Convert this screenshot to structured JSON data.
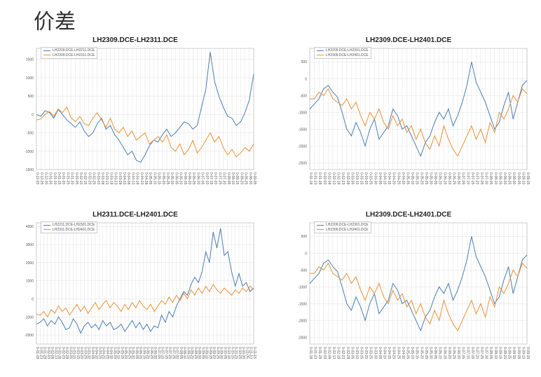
{
  "title": "价差",
  "palette": {
    "blue": "#4b7fb3",
    "orange": "#e8923a"
  },
  "style": {
    "background_color": "#ffffff",
    "grid_color": "#e0e0e0",
    "axis_color": "#bbbbbb",
    "tick_font_size": 5,
    "title_font_size": 10,
    "line_width": 1,
    "legend_font_size": 5,
    "legend_border": "#cccccc"
  },
  "charts": [
    {
      "type": "line",
      "title": "LH2309.DCE-LH2311.DCE",
      "ylim": [
        -1500,
        1800
      ],
      "ytick_step": 500,
      "yticks": [
        -1500,
        -1000,
        -500,
        0,
        500,
        1000,
        1500
      ],
      "x_labels": [
        "0-12-20",
        "0-12-25",
        "0-12-30",
        "0-01-05",
        "0-01-10",
        "0-01-15",
        "0-01-20",
        "0-01-25",
        "0-01-30",
        "0-02-05",
        "0-02-10",
        "0-02-15",
        "0-02-20",
        "0-02-25",
        "0-03-03",
        "0-03-08",
        "0-03-13",
        "0-03-18",
        "0-03-23",
        "0-03-28",
        "0-04-03",
        "0-04-08",
        "0-04-13",
        "0-04-18",
        "0-04-23",
        "0-04-28",
        "0-05-05",
        "0-05-10",
        "0-05-15",
        "0-05-20",
        "0-05-25",
        "0-05-30",
        "0-06-05",
        "0-06-10",
        "0-06-15",
        "0-06-20",
        "0-06-25",
        "0-06-30",
        "0-07-05",
        "0-07-10",
        "0-07-15",
        "0-07-20",
        "0-07-25",
        "0-07-30",
        "0-08-05",
        "0-08-10",
        "0-08-15",
        "0-08-20",
        "0-08-25",
        "0-08-30",
        "0-09-05"
      ],
      "series": [
        {
          "label": "LH2209.DCE-LH2211.DCE",
          "color": "#4b7fb3",
          "data": [
            0,
            -50,
            100,
            50,
            -100,
            140,
            0,
            -150,
            -250,
            -350,
            -200,
            -450,
            -600,
            -500,
            -250,
            -100,
            -400,
            -300,
            -550,
            -700,
            -900,
            -1100,
            -1000,
            -1250,
            -1300,
            -1100,
            -850,
            -700,
            -750,
            -550,
            -400,
            -600,
            -500,
            -350,
            -200,
            -250,
            -400,
            -300,
            200,
            700,
            1700,
            900,
            500,
            200,
            -50,
            -100,
            -300,
            -200,
            50,
            400,
            1100
          ]
        },
        {
          "label": "LH2309.DCE-LH2311.DCE",
          "color": "#e8923a",
          "data": [
            -150,
            -120,
            0,
            80,
            -50,
            150,
            50,
            200,
            -100,
            -200,
            -50,
            -250,
            -300,
            -100,
            50,
            -150,
            -350,
            -100,
            -400,
            -500,
            -350,
            -600,
            -450,
            -700,
            -600,
            -500,
            -800,
            -700,
            -600,
            -750,
            -550,
            -900,
            -1000,
            -800,
            -1100,
            -950,
            -700,
            -1050,
            -900,
            -700,
            -500,
            -750,
            -600,
            -900,
            -1100,
            -950,
            -1150,
            -1050,
            -900,
            -1000,
            -800
          ]
        }
      ]
    },
    {
      "type": "line",
      "title": "LH2309.DCE-LH2401.DCE",
      "ylim": [
        -2700,
        900
      ],
      "ytick_step": 500,
      "yticks": [
        -2500,
        -2000,
        -1500,
        -1000,
        -500,
        0,
        500
      ],
      "x_labels": [
        "0-01-18",
        "0-01-23",
        "0-01-28",
        "0-02-03",
        "0-02-08",
        "0-02-13",
        "0-02-18",
        "0-02-23",
        "0-02-28",
        "0-03-05",
        "0-03-10",
        "0-03-15",
        "0-03-20",
        "0-03-25",
        "0-03-30",
        "0-04-05",
        "0-04-10",
        "0-04-15",
        "0-04-20",
        "0-04-25",
        "0-04-30",
        "0-05-05",
        "0-05-10",
        "0-05-15",
        "0-05-20",
        "0-05-25",
        "0-05-30",
        "0-06-05",
        "0-06-10",
        "0-06-15",
        "0-06-20",
        "0-06-25",
        "0-06-30",
        "0-07-05",
        "0-07-10",
        "0-07-15",
        "0-07-20",
        "0-07-25",
        "0-07-30",
        "0-08-05",
        "0-08-10",
        "0-08-15",
        "0-08-20",
        "0-08-25",
        "0-08-30",
        "0-09-05",
        "0-09-10",
        "0-09-15"
      ],
      "series": [
        {
          "label": "LH2209.DCE-LH2301.DCE",
          "color": "#4b7fb3",
          "data": [
            -900,
            -750,
            -600,
            -300,
            -200,
            -400,
            -550,
            -1000,
            -1500,
            -1700,
            -1300,
            -1600,
            -2000,
            -1500,
            -1200,
            -1800,
            -1600,
            -1400,
            -900,
            -1100,
            -1500,
            -1400,
            -1700,
            -2000,
            -2300,
            -1900,
            -1700,
            -1300,
            -1000,
            -1200,
            -900,
            -1400,
            -1100,
            -700,
            -200,
            500,
            -100,
            -400,
            -700,
            -1100,
            -1500,
            -1300,
            -800,
            -400,
            -1200,
            -700,
            -200,
            -50
          ]
        },
        {
          "label": "LH2309.DCE-LH2401.DCE",
          "color": "#e8923a",
          "data": [
            -600,
            -600,
            -400,
            -500,
            -300,
            -600,
            -700,
            -800,
            -600,
            -900,
            -700,
            -1100,
            -1400,
            -1000,
            -1200,
            -900,
            -1300,
            -1500,
            -1100,
            -1400,
            -1200,
            -1600,
            -1400,
            -1800,
            -1500,
            -1900,
            -2100,
            -1700,
            -2000,
            -1400,
            -1800,
            -2100,
            -2300,
            -2000,
            -1700,
            -1400,
            -1800,
            -1500,
            -1900,
            -1300,
            -1600,
            -1000,
            -1200,
            -900,
            -500,
            -700,
            -300,
            -450
          ]
        }
      ]
    },
    {
      "type": "line",
      "title": "LH2311.DCE-LH2401.DCE",
      "ylim": [
        -2500,
        4200
      ],
      "ytick_step": 1000,
      "yticks": [
        -2000,
        -1000,
        0,
        1000,
        2000,
        3000,
        4000
      ],
      "x_labels": [
        "0-01-18",
        "0-01-23",
        "0-01-28",
        "0-02-03",
        "0-02-08",
        "0-02-13",
        "0-02-18",
        "0-02-23",
        "0-02-28",
        "0-03-05",
        "0-03-10",
        "0-03-15",
        "0-03-20",
        "0-03-25",
        "0-03-30",
        "0-04-05",
        "0-04-10",
        "0-04-15",
        "0-04-20",
        "0-04-25",
        "0-04-30",
        "0-05-05",
        "0-05-10",
        "0-05-15",
        "0-05-20",
        "0-05-25",
        "0-05-30",
        "0-06-05",
        "0-06-10",
        "0-06-15",
        "0-06-20",
        "0-06-25",
        "0-06-30",
        "0-07-05",
        "0-07-10",
        "0-07-15",
        "0-07-20",
        "0-07-25",
        "0-07-30",
        "0-08-05",
        "0-08-10",
        "0-08-15",
        "0-08-20",
        "0-08-25",
        "0-08-30",
        "0-09-05",
        "0-09-10",
        "0-09-15",
        "0-09-20",
        "0-09-25",
        "0-09-30",
        "0-10-05",
        "0-10-10",
        "0-10-15",
        "0-10-20",
        "0-10-25",
        "0-10-30",
        "0-11-05",
        "0-11-10",
        "0-11-15"
      ],
      "series": [
        {
          "label": "LH2211.DCE-LH2301.DCE",
          "color": "#4b7fb3",
          "data": [
            -1400,
            -1300,
            -1100,
            -1500,
            -1200,
            -1400,
            -1000,
            -1300,
            -1700,
            -1600,
            -1100,
            -1400,
            -1900,
            -1500,
            -1300,
            -1600,
            -1400,
            -1700,
            -1200,
            -1500,
            -1300,
            -1700,
            -1600,
            -1400,
            -1800,
            -1500,
            -1200,
            -1600,
            -1300,
            -1700,
            -1400,
            -1800,
            -1500,
            -1600,
            -900,
            -1300,
            -700,
            -1000,
            -400,
            0,
            400,
            200,
            800,
            1200,
            900,
            1500,
            2600,
            2000,
            3700,
            2800,
            3900,
            2400,
            2600,
            1500,
            700,
            1400,
            700,
            900,
            400,
            600
          ]
        },
        {
          "label": "LH2311.DCE-LH2401.DCE",
          "color": "#e8923a",
          "data": [
            -850,
            -900,
            -700,
            -1000,
            -600,
            -800,
            -400,
            -700,
            -500,
            -900,
            -600,
            -300,
            -700,
            -400,
            -800,
            -500,
            -200,
            -600,
            -300,
            -100,
            -500,
            -200,
            -400,
            -700,
            -300,
            -600,
            -200,
            -500,
            -100,
            -400,
            -600,
            -300,
            -700,
            -400,
            -100,
            -300,
            100,
            -200,
            200,
            -100,
            300,
            0,
            500,
            200,
            600,
            300,
            700,
            400,
            800,
            500,
            300,
            600,
            400,
            200,
            500,
            300,
            600,
            400,
            700,
            500
          ]
        }
      ]
    },
    {
      "type": "line",
      "title": "LH2309.DCE-LH2401.DCE",
      "ylim": [
        -2700,
        900
      ],
      "ytick_step": 500,
      "yticks": [
        -2500,
        -2000,
        -1500,
        -1000,
        -500,
        0,
        500
      ],
      "x_labels": [
        "0-01-18",
        "0-01-23",
        "0-01-28",
        "0-02-03",
        "0-02-08",
        "0-02-13",
        "0-02-18",
        "0-02-23",
        "0-02-28",
        "0-03-05",
        "0-03-10",
        "0-03-15",
        "0-03-20",
        "0-03-25",
        "0-03-30",
        "0-04-05",
        "0-04-10",
        "0-04-15",
        "0-04-20",
        "0-04-25",
        "0-04-30",
        "0-05-05",
        "0-05-10",
        "0-05-15",
        "0-05-20",
        "0-05-25",
        "0-05-30",
        "0-06-05",
        "0-06-10",
        "0-06-15",
        "0-06-20",
        "0-06-25",
        "0-06-30",
        "0-07-05",
        "0-07-10",
        "0-07-15",
        "0-07-20",
        "0-07-25",
        "0-07-30",
        "0-08-05",
        "0-08-10",
        "0-08-15",
        "0-08-20",
        "0-08-25",
        "0-08-30",
        "0-09-05",
        "0-09-10",
        "0-09-15"
      ],
      "series": [
        {
          "label": "LH2209.DCE-LH2301.DCE",
          "color": "#4b7fb3",
          "data": [
            -900,
            -750,
            -600,
            -300,
            -200,
            -400,
            -550,
            -1000,
            -1500,
            -1700,
            -1300,
            -1600,
            -2000,
            -1500,
            -1200,
            -1800,
            -1600,
            -1400,
            -900,
            -1100,
            -1500,
            -1400,
            -1700,
            -2000,
            -2300,
            -1900,
            -1700,
            -1300,
            -1000,
            -1200,
            -900,
            -1400,
            -1100,
            -700,
            -200,
            500,
            -100,
            -400,
            -700,
            -1100,
            -1500,
            -1300,
            -800,
            -400,
            -1200,
            -700,
            -200,
            -50
          ]
        },
        {
          "label": "LH2309.DCE-LH2401.DCE",
          "color": "#e8923a",
          "data": [
            -600,
            -600,
            -400,
            -500,
            -300,
            -600,
            -700,
            -800,
            -600,
            -900,
            -700,
            -1100,
            -1400,
            -1000,
            -1200,
            -900,
            -1300,
            -1500,
            -1100,
            -1400,
            -1200,
            -1600,
            -1400,
            -1800,
            -1500,
            -1900,
            -2100,
            -1700,
            -2000,
            -1400,
            -1800,
            -2100,
            -2300,
            -2000,
            -1700,
            -1400,
            -1800,
            -1500,
            -1900,
            -1300,
            -1600,
            -1000,
            -1200,
            -900,
            -500,
            -700,
            -300,
            -450
          ]
        }
      ]
    }
  ]
}
